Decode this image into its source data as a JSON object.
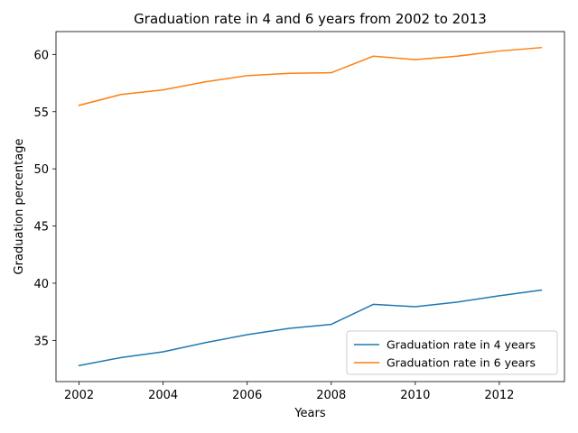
{
  "chart_data": {
    "type": "line",
    "title": "Graduation rate in 4 and 6 years from 2002 to 2013",
    "xlabel": "Years",
    "ylabel": "Graduation percentage",
    "x": [
      2002,
      2003,
      2004,
      2005,
      2006,
      2007,
      2008,
      2009,
      2010,
      2011,
      2012,
      2013
    ],
    "series": [
      {
        "name": "Graduation rate in 4 years",
        "color": "#1f77b4",
        "values": [
          32.8,
          33.5,
          34.0,
          34.8,
          35.5,
          36.05,
          36.4,
          38.15,
          37.95,
          38.35,
          38.9,
          39.4
        ]
      },
      {
        "name": "Graduation rate in 6 years",
        "color": "#ff7f0e",
        "values": [
          55.55,
          56.5,
          56.9,
          57.6,
          58.15,
          58.35,
          58.4,
          59.85,
          59.55,
          59.85,
          60.3,
          60.6
        ]
      }
    ],
    "xlim": [
      2001.45,
      2013.55
    ],
    "ylim": [
      31.4,
      62.0
    ],
    "xticks": [
      2002,
      2004,
      2006,
      2008,
      2010,
      2012
    ],
    "yticks": [
      35,
      40,
      45,
      50,
      55,
      60
    ],
    "legend": "lower-right",
    "grid": false
  }
}
